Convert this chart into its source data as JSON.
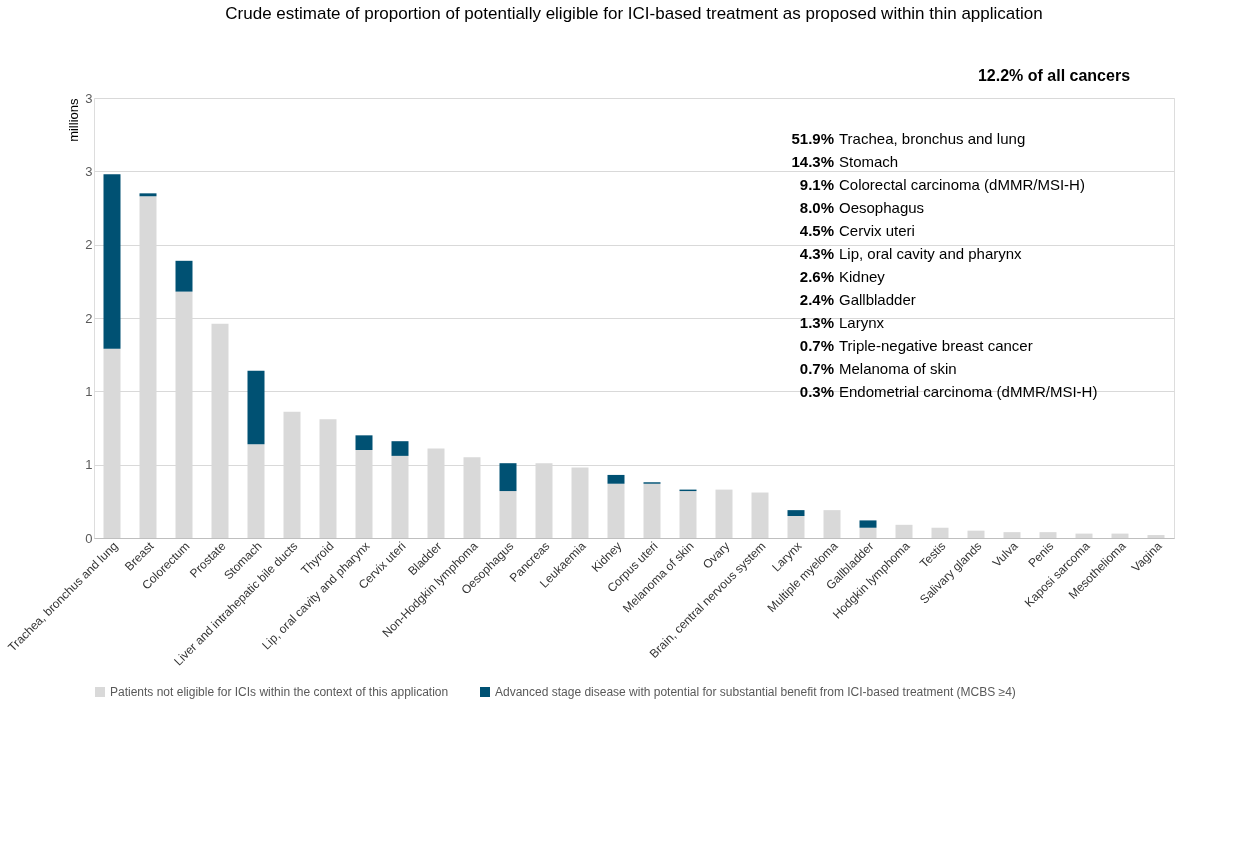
{
  "chart_data": {
    "type": "bar",
    "title": "Crude estimate of proportion of potentially eligible for ICI-based treatment as proposed within thin application",
    "ylabel": "millions",
    "categories": [
      "Trachea, bronchus and lung",
      "Breast",
      "Colorectum",
      "Prostate",
      "Stomach",
      "Liver and intrahepatic bile ducts",
      "Thyroid",
      "Lip, oral cavity and pharynx",
      "Cervix uteri",
      "Bladder",
      "Non-Hodgkin lymphoma",
      "Oesophagus",
      "Pancreas",
      "Leukaemia",
      "Kidney",
      "Corpus uteri",
      "Melanoma of skin",
      "Ovary",
      "Brain, central nervous system",
      "Larynx",
      "Multiple myeloma",
      "Gallbladder",
      "Hodgkin lymphoma",
      "Testis",
      "Salivary glands",
      "Vulva",
      "Penis",
      "Kaposi sarcoma",
      "Mesothelioma",
      "Vagina"
    ],
    "stacked": true,
    "series": [
      {
        "name": "Patients not eligible for ICIs within the context of this application",
        "color": "#d9d9d9",
        "values": [
          1.29,
          2.33,
          1.68,
          1.46,
          0.64,
          0.86,
          0.81,
          0.6,
          0.56,
          0.61,
          0.55,
          0.32,
          0.51,
          0.48,
          0.37,
          0.37,
          0.32,
          0.33,
          0.31,
          0.15,
          0.19,
          0.07,
          0.09,
          0.07,
          0.05,
          0.04,
          0.04,
          0.03,
          0.03,
          0.02
        ]
      },
      {
        "name": "Advanced stage disease with potential for substantial benefit from ICI-based treatment (MCBS ≥4)",
        "color": "#005173",
        "values": [
          1.19,
          0.02,
          0.21,
          0,
          0.5,
          0,
          0,
          0.1,
          0.1,
          0,
          0,
          0.19,
          0,
          0,
          0.06,
          0.01,
          0.01,
          0,
          0,
          0.04,
          0,
          0.05,
          0,
          0,
          0,
          0,
          0,
          0,
          0,
          0
        ]
      }
    ],
    "ylim": [
      0,
      3
    ],
    "yticks": [
      0,
      {
        "value": 0.5,
        "label": "1"
      },
      1,
      {
        "value": 1.5,
        "label": "2"
      },
      2,
      {
        "value": 2.5,
        "label": "3"
      },
      3
    ],
    "grid": "y",
    "legend": "bottom",
    "annotations": [
      "12.2% of all cancers",
      "51.9% Trachea, bronchus and lung",
      "14.3% Stomach",
      "9.1% Colorectal carcinoma (dMMR/MSI-H)",
      "8.0% Oesophagus",
      "4.5% Cervix uteri",
      "4.3% Lip, oral cavity and pharynx",
      "2.6% Kidney",
      "2.4% Gallbladder",
      "1.3% Larynx",
      "0.7% Triple-negative breast cancer",
      "0.7% Melanoma of skin",
      "0.3% Endometrial carcinoma (dMMR/MSI-H)"
    ]
  }
}
